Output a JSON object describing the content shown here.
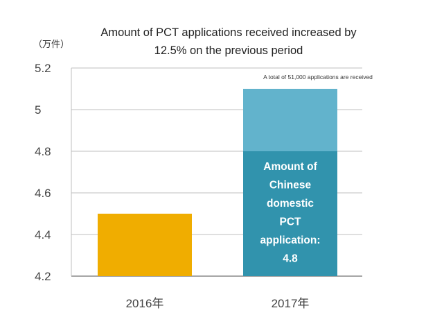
{
  "chart_data": {
    "type": "bar",
    "title_lines": [
      "Amount of PCT applications received increased by",
      "12.5% on the previous period"
    ],
    "unit_label": "（万件）",
    "categories": [
      "2016年",
      "2017年"
    ],
    "values": [
      4.5,
      5.1
    ],
    "stacked_segment": {
      "category": "2017年",
      "value": 4.8,
      "label_lines": [
        "Amount of",
        "Chinese",
        "domestic",
        "PCT",
        "application:",
        "4.8"
      ]
    },
    "callout": "A total of 51,000 applications are received",
    "ylim": [
      4.2,
      5.2
    ],
    "yticks": [
      4.2,
      4.4,
      4.6,
      4.8,
      5,
      5.2
    ],
    "ytick_labels": [
      "4.2",
      "4.4",
      "4.6",
      "4.8",
      "5",
      "5.2"
    ],
    "grid": true,
    "colors": {
      "bar_2016": "#f0ad00",
      "bar_2017_top": "#62b3cc",
      "bar_2017_segment": "#3193ad",
      "grid": "#bfbfbf",
      "axis": "#888888"
    }
  }
}
